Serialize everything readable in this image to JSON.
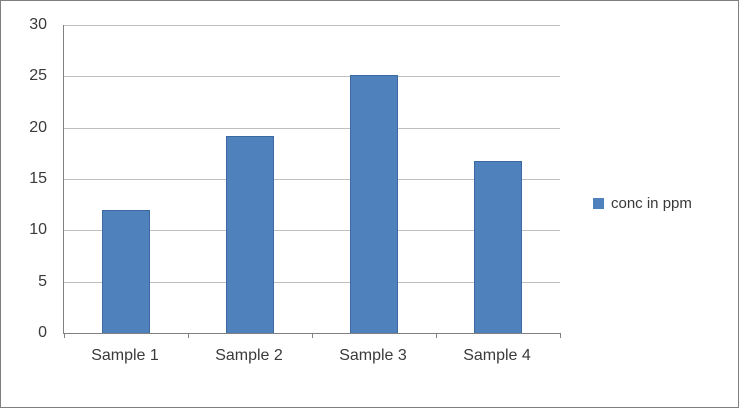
{
  "chart_data": {
    "type": "bar",
    "categories": [
      "Sample 1",
      "Sample 2",
      "Sample 3",
      "Sample 4"
    ],
    "values": [
      12,
      19.2,
      25.1,
      16.8
    ],
    "series_name": "conc in ppm",
    "title": "",
    "xlabel": "",
    "ylabel": "",
    "ylim": [
      0,
      30
    ],
    "ytick_step": 5,
    "grid": true,
    "legend_position": "right",
    "bar_color": "#4f81bd",
    "bar_border_color": "#3b6aa0",
    "gridline_color": "#bfbfbf",
    "axis_color": "#808080",
    "text_color": "#3a3a3a"
  },
  "legend": {
    "items": [
      {
        "label": "conc in ppm",
        "color": "#4f81bd"
      }
    ]
  }
}
